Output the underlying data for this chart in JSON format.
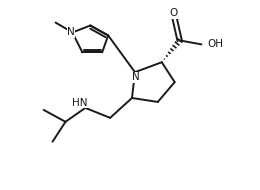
{
  "bg_color": "#ffffff",
  "line_color": "#1a1a1a",
  "line_width": 1.4,
  "font_size": 7.5,
  "fig_width": 2.6,
  "fig_height": 1.9,
  "dpi": 100,
  "xlim": [
    0,
    26
  ],
  "ylim": [
    0,
    19
  ]
}
